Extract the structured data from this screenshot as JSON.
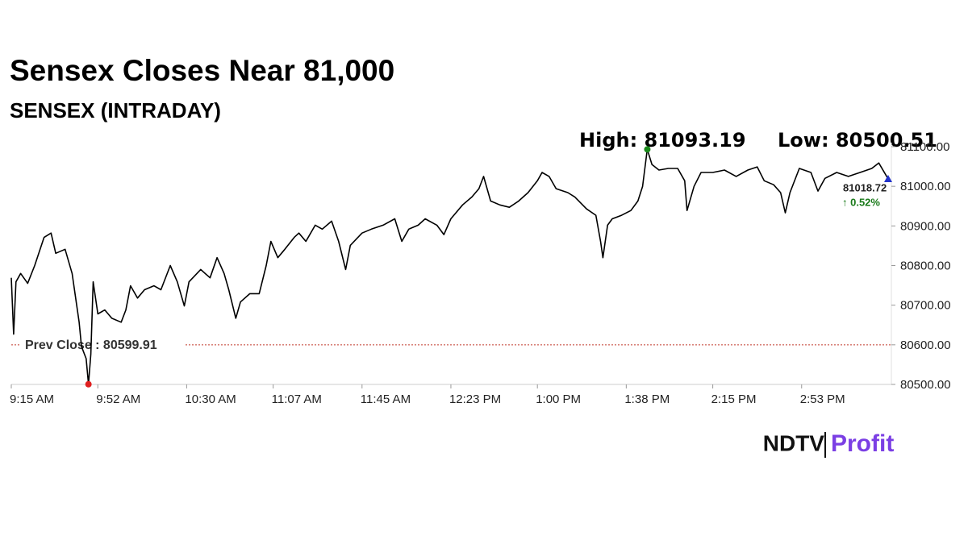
{
  "chart_data": {
    "type": "line",
    "title": "Sensex Closes Near 81,000",
    "subtitle": "SENSEX (INTRADAY)",
    "high_label": "High: 81093.19",
    "low_label": "Low: 80500.51",
    "prev_close": 80599.91,
    "prev_close_label": "Prev Close : 80599.91",
    "last_label": "81018.72",
    "change_label": "↑ 0.52%",
    "color": "#000000",
    "x": [
      "9:15 AM",
      "9:16 AM",
      "9:17 AM",
      "9:19 AM",
      "9:22 AM",
      "9:25 AM",
      "9:29 AM",
      "9:32 AM",
      "9:34 AM",
      "9:38 AM",
      "9:41 AM",
      "9:44 AM",
      "9:45 AM",
      "9:47 AM",
      "9:48 AM",
      "9:49 AM",
      "9:50 AM",
      "9:52 AM",
      "9:55 AM",
      "9:58 AM",
      "10:02 AM",
      "10:04 AM",
      "10:06 AM",
      "10:09 AM",
      "10:12 AM",
      "10:16 AM",
      "10:19 AM",
      "10:23 AM",
      "10:26 AM",
      "10:29 AM",
      "10:31 AM",
      "10:36 AM",
      "10:40 AM",
      "10:43 AM",
      "10:46 AM",
      "10:48 AM",
      "10:51 AM",
      "10:53 AM",
      "10:57 AM",
      "11:01 AM",
      "11:04 AM",
      "11:06 AM",
      "11:09 AM",
      "11:12 AM",
      "11:16 AM",
      "11:18 AM",
      "11:21 AM",
      "11:25 AM",
      "11:28 AM",
      "11:32 AM",
      "11:35 AM",
      "11:38 AM",
      "11:40 AM",
      "11:45 AM",
      "11:49 AM",
      "11:54 AM",
      "11:59 AM",
      "12:02 PM",
      "12:05 PM",
      "12:09 PM",
      "12:12 PM",
      "12:17 PM",
      "12:20 PM",
      "12:23 PM",
      "12:28 PM",
      "12:32 PM",
      "12:35 PM",
      "12:37 PM",
      "12:40 PM",
      "12:44 PM",
      "12:48 PM",
      "12:52 PM",
      "12:56 PM",
      "1:00 PM",
      "1:02 PM",
      "1:05 PM",
      "1:08 PM",
      "1:13 PM",
      "1:16 PM",
      "1:21 PM",
      "1:25 PM",
      "1:27 PM",
      "1:28 PM",
      "1:30 PM",
      "1:32 PM",
      "1:36 PM",
      "1:40 PM",
      "1:43 PM",
      "1:45 PM",
      "1:47 PM",
      "1:49 PM",
      "1:52 PM",
      "1:56 PM",
      "2:00 PM",
      "2:03 PM",
      "2:04 PM",
      "2:07 PM",
      "2:10 PM",
      "2:15 PM",
      "2:20 PM",
      "2:25 PM",
      "2:30 PM",
      "2:34 PM",
      "2:37 PM",
      "2:41 PM",
      "2:44 PM",
      "2:46 PM",
      "2:48 PM",
      "2:52 PM",
      "2:57 PM",
      "3:00 PM",
      "3:03 PM",
      "3:08 PM",
      "3:13 PM",
      "3:18 PM",
      "3:23 PM",
      "3:26 PM",
      "3:30 PM"
    ],
    "values": [
      80769,
      80627,
      80759,
      80780,
      80755,
      80800,
      80871,
      80882,
      80831,
      80841,
      80780,
      80657,
      80596,
      80565,
      80500.51,
      80576,
      80759,
      80678,
      80688,
      80667,
      80657,
      80688,
      80749,
      80718,
      80739,
      80749,
      80739,
      80800,
      80759,
      80698,
      80759,
      80790,
      80769,
      80820,
      80780,
      80739,
      80667,
      80708,
      80729,
      80729,
      80800,
      80861,
      80820,
      80841,
      80871,
      80882,
      80861,
      80902,
      80892,
      80912,
      80861,
      80790,
      80851,
      80882,
      80892,
      80902,
      80918,
      80861,
      80892,
      80902,
      80918,
      80902,
      80878,
      80918,
      80953,
      80973,
      80994,
      81025,
      80963,
      80953,
      80947,
      80963,
      80984,
      81014,
      81035,
      81025,
      80994,
      80984,
      80973,
      80943,
      80927,
      80861,
      80820,
      80902,
      80918,
      80927,
      80939,
      80963,
      81000,
      81093.19,
      81055,
      81041,
      81045,
      81045,
      81014,
      80939,
      81000,
      81035,
      81035,
      81041,
      81025,
      81041,
      81049,
      81014,
      81004,
      80984,
      80933,
      80984,
      81045,
      81035,
      80988,
      81020,
      81035,
      81025,
      81035,
      81045,
      81059,
      81018.72
    ],
    "xlim": [
      "9:15 AM",
      "3:30 PM"
    ],
    "xticks": [
      "9:15 AM",
      "9:52 AM",
      "10:30 AM",
      "11:07 AM",
      "11:45 AM",
      "12:23 PM",
      "1:00 PM",
      "1:38 PM",
      "2:15 PM",
      "2:53 PM"
    ],
    "ylim": [
      80500,
      81100
    ],
    "yticks": [
      {
        "value": 80500,
        "label": "80500.00"
      },
      {
        "value": 80600,
        "label": "80600.00"
      },
      {
        "value": 80700,
        "label": "80700.00"
      },
      {
        "value": 80800,
        "label": "80800.00"
      },
      {
        "value": 80900,
        "label": "80900.00"
      },
      {
        "value": 81000,
        "label": "81000.00"
      },
      {
        "value": 81100,
        "label": "81100.00"
      }
    ]
  },
  "footer": {
    "brand": "NDTV",
    "product": "Profit"
  }
}
